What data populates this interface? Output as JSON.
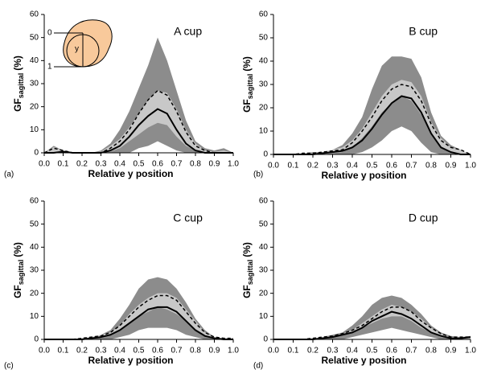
{
  "chart_data": [
    {
      "type": "line",
      "panel_label": "(a)",
      "title": "A cup",
      "xlabel": "Relative y position",
      "ylabel": {
        "main": "GF",
        "sub": "sagittal",
        "unit": "(%)"
      },
      "inset": {
        "top": "0",
        "bottom": "1",
        "axis": "y"
      },
      "x": [
        0,
        0.05,
        0.1,
        0.15,
        0.2,
        0.25,
        0.3,
        0.35,
        0.4,
        0.45,
        0.5,
        0.55,
        0.6,
        0.65,
        0.7,
        0.75,
        0.8,
        0.85,
        0.9,
        0.95,
        1
      ],
      "xlim": [
        0,
        1
      ],
      "xticks": [
        {
          "value": 0,
          "label": "0.0"
        },
        0.1,
        0.2,
        0.3,
        0.4,
        0.5,
        0.6,
        0.7,
        0.8,
        0.9,
        {
          "value": 1,
          "label": "1.0"
        }
      ],
      "ylim": [
        0,
        60
      ],
      "yticks": [
        0,
        10,
        20,
        30,
        40,
        50,
        60
      ],
      "bands": [
        {
          "color": "#8c8c8c",
          "upper": [
            0,
            3,
            1,
            0,
            0,
            0,
            1,
            4,
            10,
            18,
            28,
            38,
            50,
            40,
            27,
            14,
            5,
            2,
            1,
            2,
            0
          ],
          "lower": [
            0,
            0,
            0,
            0,
            0,
            0,
            0,
            0,
            0,
            0,
            2,
            3,
            5,
            3,
            1,
            0,
            0,
            0,
            0,
            0,
            0
          ]
        },
        {
          "color": "#c8c8c8",
          "upper": [
            0,
            2.5,
            1,
            0,
            0,
            0,
            0.5,
            3,
            6,
            11,
            17,
            23,
            27,
            26,
            19,
            10,
            4,
            1,
            0.5,
            1,
            0
          ],
          "lower": [
            0,
            0,
            0,
            0,
            0,
            0,
            0,
            0.5,
            2,
            5,
            8,
            11,
            13,
            12,
            7,
            3,
            1,
            0,
            0,
            0,
            0
          ]
        }
      ],
      "lines": [
        {
          "color": "#000000",
          "dash": false,
          "values": [
            0,
            0,
            0.5,
            0,
            0,
            0,
            0,
            1,
            3,
            7,
            12,
            16,
            19,
            17,
            10,
            4,
            1,
            0,
            0,
            0,
            0
          ]
        },
        {
          "color": "#000000",
          "dash": true,
          "values": [
            0,
            2,
            1,
            0,
            0,
            0,
            0,
            2,
            5,
            10,
            17,
            23,
            27,
            25,
            18,
            9,
            3,
            1,
            0,
            0,
            0
          ]
        }
      ]
    },
    {
      "type": "line",
      "panel_label": "(b)",
      "title": "B cup",
      "xlabel": "Relative y position",
      "ylabel": {
        "main": "GF",
        "sub": "sagittal",
        "unit": "(%)"
      },
      "x": [
        0,
        0.05,
        0.1,
        0.15,
        0.2,
        0.25,
        0.3,
        0.35,
        0.4,
        0.45,
        0.5,
        0.55,
        0.6,
        0.65,
        0.7,
        0.75,
        0.8,
        0.85,
        0.9,
        0.95,
        1
      ],
      "xlim": [
        0,
        1
      ],
      "xticks": [
        {
          "value": 0,
          "label": "0.0"
        },
        0.1,
        0.2,
        0.3,
        0.4,
        0.5,
        0.6,
        0.7,
        0.8,
        0.9,
        {
          "value": 1,
          "label": "1.0"
        }
      ],
      "ylim": [
        0,
        60
      ],
      "yticks": [
        0,
        10,
        20,
        30,
        40,
        50,
        60
      ],
      "bands": [
        {
          "color": "#8c8c8c",
          "upper": [
            0,
            0,
            0,
            0.5,
            1,
            1,
            2,
            4,
            9,
            16,
            28,
            38,
            42,
            42,
            41,
            33,
            18,
            8,
            4,
            2,
            0
          ],
          "lower": [
            0,
            0,
            0,
            0,
            0,
            0,
            0,
            0,
            0,
            1,
            3,
            6,
            10,
            12,
            10,
            5,
            1,
            0,
            0,
            0,
            0
          ]
        },
        {
          "color": "#c8c8c8",
          "upper": [
            0,
            0,
            0,
            0.5,
            0.5,
            1,
            2,
            3,
            6,
            11,
            18,
            25,
            30,
            32,
            31,
            25,
            14,
            7,
            3,
            2,
            0
          ],
          "lower": [
            0,
            0,
            0,
            0,
            0,
            0,
            0.5,
            1,
            3,
            7,
            12,
            18,
            22,
            25,
            23,
            17,
            9,
            3,
            1,
            0,
            0
          ]
        }
      ],
      "lines": [
        {
          "color": "#000000",
          "dash": false,
          "values": [
            0,
            0,
            0,
            0,
            0,
            0.5,
            1,
            1.5,
            3,
            6,
            11,
            17,
            22,
            25,
            24,
            18,
            9,
            3,
            1,
            0,
            0
          ]
        },
        {
          "color": "#000000",
          "dash": true,
          "values": [
            0,
            0,
            0,
            0.5,
            0.5,
            1,
            1.5,
            2,
            5,
            10,
            16,
            23,
            28,
            30,
            29,
            23,
            13,
            6,
            3,
            2,
            0
          ]
        }
      ]
    },
    {
      "type": "line",
      "panel_label": "(c)",
      "title": "C cup",
      "xlabel": "Relative y position",
      "ylabel": {
        "main": "GF",
        "sub": "sagittal",
        "unit": "(%)"
      },
      "x": [
        0,
        0.05,
        0.1,
        0.15,
        0.2,
        0.25,
        0.3,
        0.35,
        0.4,
        0.45,
        0.5,
        0.55,
        0.6,
        0.65,
        0.7,
        0.75,
        0.8,
        0.85,
        0.9,
        0.95,
        1
      ],
      "xlim": [
        0,
        1
      ],
      "xticks": [
        {
          "value": 0,
          "label": "0.0"
        },
        0.1,
        0.2,
        0.3,
        0.4,
        0.5,
        0.6,
        0.7,
        0.8,
        0.9,
        {
          "value": 1,
          "label": "1.0"
        }
      ],
      "ylim": [
        0,
        60
      ],
      "yticks": [
        0,
        10,
        20,
        30,
        40,
        50,
        60
      ],
      "bands": [
        {
          "color": "#8c8c8c",
          "upper": [
            0,
            0,
            0,
            0,
            0.5,
            1,
            2,
            4,
            9,
            15,
            22,
            26,
            27,
            26,
            22,
            16,
            9,
            4,
            1,
            0.5,
            0.5
          ],
          "lower": [
            0,
            0,
            0,
            0,
            0,
            0,
            0,
            0,
            1,
            2,
            4,
            5,
            5,
            5,
            4,
            2,
            1,
            0,
            0,
            0,
            0
          ]
        },
        {
          "color": "#c8c8c8",
          "upper": [
            0,
            0,
            0,
            0,
            0.5,
            1,
            2,
            3,
            6,
            11,
            15,
            18,
            20,
            20,
            18,
            13,
            8,
            3,
            1,
            0.5,
            0.5
          ],
          "lower": [
            0,
            0,
            0,
            0,
            0,
            0.5,
            1,
            2,
            4,
            7,
            10,
            12,
            14,
            13,
            11,
            8,
            4,
            1.5,
            0.5,
            0,
            0
          ]
        }
      ],
      "lines": [
        {
          "color": "#000000",
          "dash": false,
          "values": [
            0,
            0,
            0,
            0,
            0,
            0.5,
            1,
            2,
            4,
            7,
            10,
            13,
            14,
            14,
            12,
            8,
            4,
            1.5,
            0.5,
            0,
            0
          ]
        },
        {
          "color": "#000000",
          "dash": true,
          "values": [
            0,
            0,
            0,
            0,
            0.5,
            1,
            1.5,
            3,
            6,
            10,
            14,
            17,
            19,
            19,
            17,
            12,
            7,
            3,
            1,
            0.5,
            0.5
          ]
        }
      ]
    },
    {
      "type": "line",
      "panel_label": "(d)",
      "title": "D cup",
      "xlabel": "Relative y position",
      "ylabel": {
        "main": "GF",
        "sub": "sagittal",
        "unit": "(%)"
      },
      "x": [
        0,
        0.05,
        0.1,
        0.15,
        0.2,
        0.25,
        0.3,
        0.35,
        0.4,
        0.45,
        0.5,
        0.55,
        0.6,
        0.65,
        0.7,
        0.75,
        0.8,
        0.85,
        0.9,
        0.95,
        1
      ],
      "xlim": [
        0,
        1
      ],
      "xticks": [
        {
          "value": 0,
          "label": "0.0"
        },
        0.1,
        0.2,
        0.3,
        0.4,
        0.5,
        0.6,
        0.7,
        0.8,
        0.9,
        {
          "value": 1,
          "label": "1.0"
        }
      ],
      "ylim": [
        0,
        60
      ],
      "yticks": [
        0,
        10,
        20,
        30,
        40,
        50,
        60
      ],
      "bands": [
        {
          "color": "#8c8c8c",
          "upper": [
            0,
            0,
            0,
            0,
            0.5,
            1,
            2,
            3,
            6,
            10,
            15,
            18,
            19,
            18,
            15,
            11,
            6,
            3,
            1.5,
            1,
            1.5
          ],
          "lower": [
            0,
            0,
            0,
            0,
            0,
            0,
            0,
            0,
            1,
            2,
            3,
            4,
            5,
            4,
            3,
            2,
            1,
            0,
            0,
            0,
            0
          ]
        },
        {
          "color": "#c8c8c8",
          "upper": [
            0,
            0,
            0,
            0,
            0.5,
            1,
            1.5,
            2.5,
            4,
            7,
            10,
            13,
            15,
            14,
            12,
            9,
            5,
            2.5,
            1,
            1,
            1
          ],
          "lower": [
            0,
            0,
            0,
            0,
            0,
            0.5,
            1,
            2,
            3,
            5,
            7,
            9,
            10,
            10,
            8,
            5,
            3,
            1,
            0.5,
            0,
            0
          ]
        }
      ],
      "lines": [
        {
          "color": "#000000",
          "dash": false,
          "values": [
            0,
            0,
            0,
            0,
            0,
            0.5,
            1,
            2,
            3,
            5,
            8,
            10,
            12,
            11,
            9,
            6,
            3,
            1.5,
            0.5,
            0.5,
            1
          ]
        },
        {
          "color": "#000000",
          "dash": true,
          "values": [
            0,
            0,
            0,
            0,
            0.5,
            1,
            1.5,
            2.5,
            4,
            6,
            9,
            12,
            14,
            14,
            12,
            8,
            5,
            2.5,
            1,
            1,
            1
          ]
        }
      ]
    }
  ]
}
